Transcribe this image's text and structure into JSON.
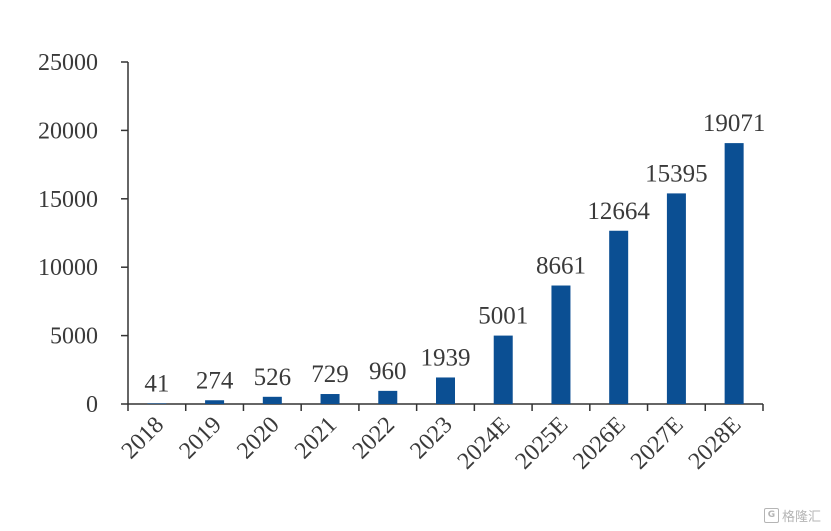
{
  "chart_data": {
    "type": "bar",
    "categories": [
      "2018",
      "2019",
      "2020",
      "2021",
      "2022",
      "2023",
      "2024E",
      "2025E",
      "2026E",
      "2027E",
      "2028E"
    ],
    "values": [
      41,
      274,
      526,
      729,
      960,
      1939,
      5001,
      8661,
      12664,
      15395,
      19071
    ],
    "data_labels": [
      "41",
      "274",
      "526",
      "729",
      "960",
      "1939",
      "5001",
      "8661",
      "12664",
      "15395",
      "19071"
    ],
    "title": "",
    "xlabel": "",
    "ylabel": "",
    "ylim": [
      0,
      25000
    ],
    "yticks": [
      0,
      5000,
      10000,
      15000,
      20000,
      25000
    ],
    "ytick_labels": [
      "0",
      "5000",
      "10000",
      "15000",
      "20000",
      "25000"
    ],
    "grid": false,
    "bar_color": "#0b4f93"
  },
  "watermark": {
    "icon": "G",
    "text": "格隆汇"
  }
}
